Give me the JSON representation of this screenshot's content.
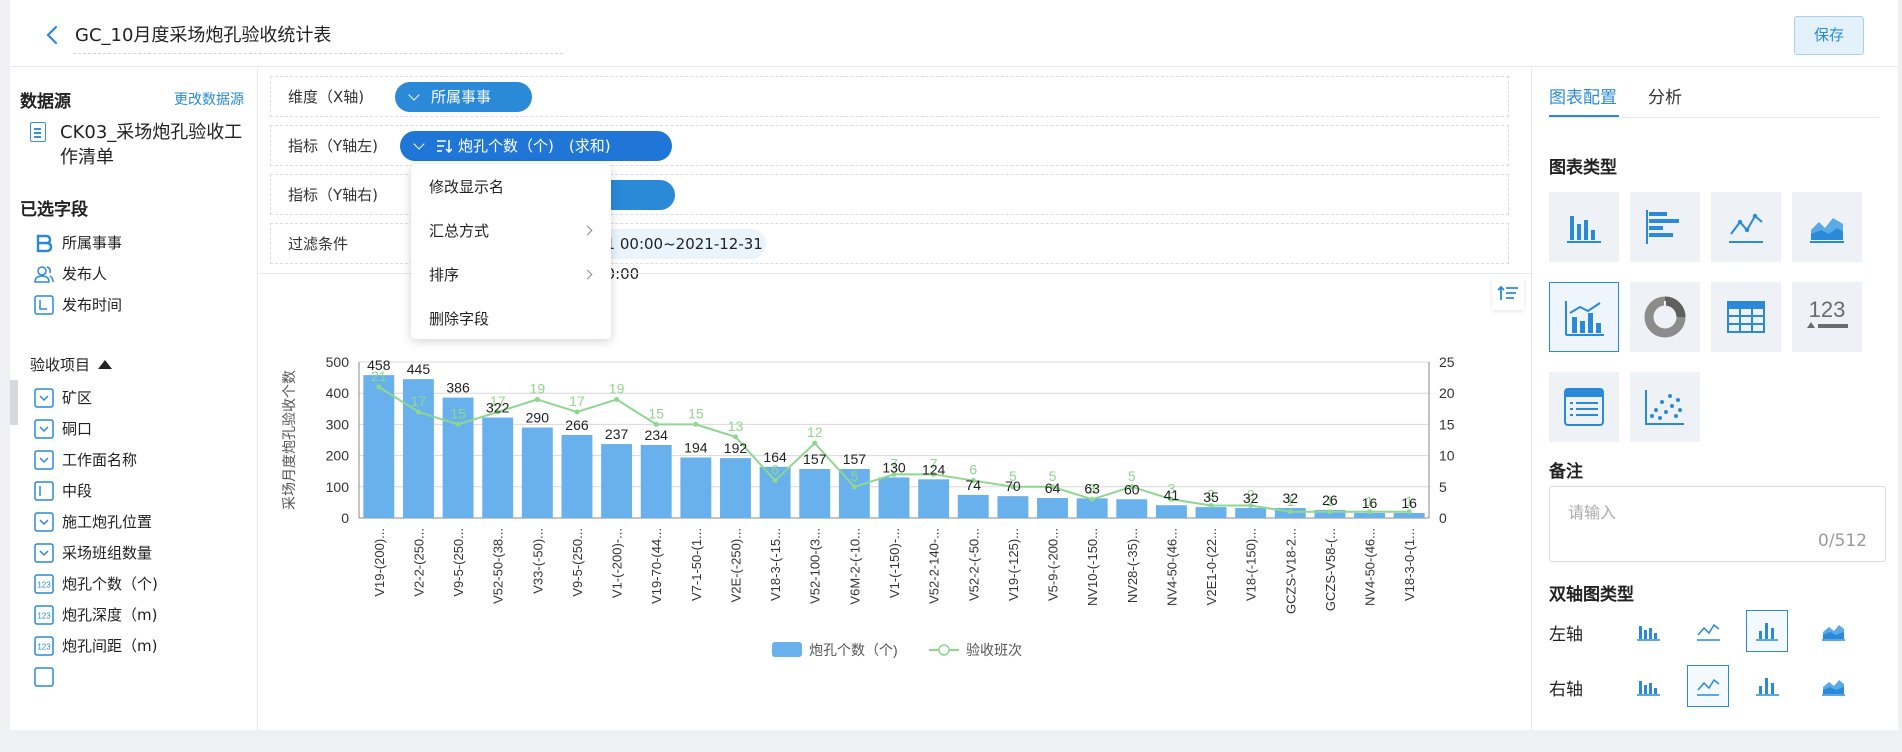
{
  "header": {
    "title": "GC_10月度采场炮孔验收统计表",
    "save_label": "保存"
  },
  "left": {
    "datasource_heading": "数据源",
    "change_datasource": "更改数据源",
    "datasource_name": "CK03_采场炮孔验收工作清单",
    "selected_heading": "已选字段",
    "fields_top": [
      {
        "label": "所属事事",
        "icon": "b-icon"
      },
      {
        "label": "发布人",
        "icon": "user-icon"
      },
      {
        "label": "发布时间",
        "icon": "date-icon"
      }
    ],
    "group_label": "验收项目",
    "fields_group": [
      {
        "label": "矿区",
        "icon": "dropdown-icon"
      },
      {
        "label": "硐口",
        "icon": "dropdown-icon"
      },
      {
        "label": "工作面名称",
        "icon": "dropdown-icon"
      },
      {
        "label": "中段",
        "icon": "text-icon"
      },
      {
        "label": "施工炮孔位置",
        "icon": "dropdown-icon"
      },
      {
        "label": "采场班组数量",
        "icon": "dropdown-icon"
      },
      {
        "label": "炮孔个数（个)",
        "icon": "number-icon",
        "icon_text": "123"
      },
      {
        "label": "炮孔深度（m)",
        "icon": "number-icon",
        "icon_text": "123"
      },
      {
        "label": "炮孔间距（m)",
        "icon": "number-icon",
        "icon_text": "123"
      }
    ]
  },
  "config": {
    "x_axis_label": "维度（X轴)",
    "x_axis_value": "所属事事",
    "y_left_label": "指标（Y轴左)",
    "y_left_value": "炮孔个数（个)　(求和)",
    "y_right_label": "指标（Y轴右)",
    "filter_label": "过滤条件",
    "filter_value": "01 00:00~2021-12-31 00:00"
  },
  "menu": {
    "items": [
      "修改显示名",
      "汇总方式",
      "排序",
      "删除字段"
    ]
  },
  "chart_data": {
    "type": "bar",
    "ylabel": "采场月度炮孔验收个数",
    "ylim": [
      0,
      500
    ],
    "y2lim": [
      0,
      25
    ],
    "y_ticks": [
      "0",
      "100",
      "200",
      "300",
      "400",
      "500"
    ],
    "y2_ticks": [
      "0",
      "5",
      "10",
      "15",
      "20",
      "25"
    ],
    "categories": [
      "V19-(200)...",
      "V2-2-(250...",
      "V9-5-(250...",
      "V52-50-(38...",
      "V33-(-50)...",
      "V9-5-(250...",
      "V1-(-200)-...",
      "V19-70-(44...",
      "V7-1-50-(1...",
      "V2E-(-250)...",
      "V18-3-(-15...",
      "V52-100-(3...",
      "V6M-2-(-10...",
      "V1-(-150)-...",
      "V52-2-140-...",
      "V52-2-(-50...",
      "V19-(-125)...",
      "V5-9-(-200...",
      "NV10-(-150...",
      "NV28-(-35)...",
      "NV4-50-(46...",
      "V2E1-0-(22...",
      "V18-(-150)...",
      "GCZS-V18-2...",
      "GCZS-V58-(...",
      "NV4-50-(46...",
      "V18-3-0-(1..."
    ],
    "series": [
      {
        "name": "炮孔个数（个)",
        "type": "bar",
        "color": "#69b1ec",
        "values": [
          458,
          445,
          386,
          322,
          290,
          266,
          237,
          234,
          194,
          192,
          164,
          157,
          157,
          130,
          124,
          74,
          70,
          64,
          63,
          60,
          41,
          35,
          32,
          32,
          26,
          16,
          16
        ]
      },
      {
        "name": "验收班次",
        "type": "line",
        "axis": "right",
        "color": "#8fd68f",
        "values": [
          21,
          17,
          15,
          17,
          19,
          17,
          19,
          15,
          15,
          13,
          6,
          12,
          5,
          7,
          7,
          6,
          5,
          5,
          3,
          5,
          3,
          2,
          2,
          1,
          1,
          1,
          1
        ]
      }
    ],
    "grid": true,
    "legend": "bottom"
  },
  "right": {
    "tabs": [
      "图表配置",
      "分析"
    ],
    "chart_type_heading": "图表类型",
    "chart_types": [
      "bar-chart-icon",
      "horizontal-bar-icon",
      "line-chart-icon",
      "area-chart-icon",
      "combo-chart-icon",
      "pie-chart-icon",
      "table-icon",
      "number-card-icon",
      "detail-table-icon",
      "scatter-icon"
    ],
    "number_card_text": "123",
    "remark_heading": "备注",
    "remark_placeholder": "请输入",
    "remark_count": "0/512",
    "dual_axis_heading": "双轴图类型",
    "left_axis_label": "左轴",
    "right_axis_label": "右轴"
  }
}
